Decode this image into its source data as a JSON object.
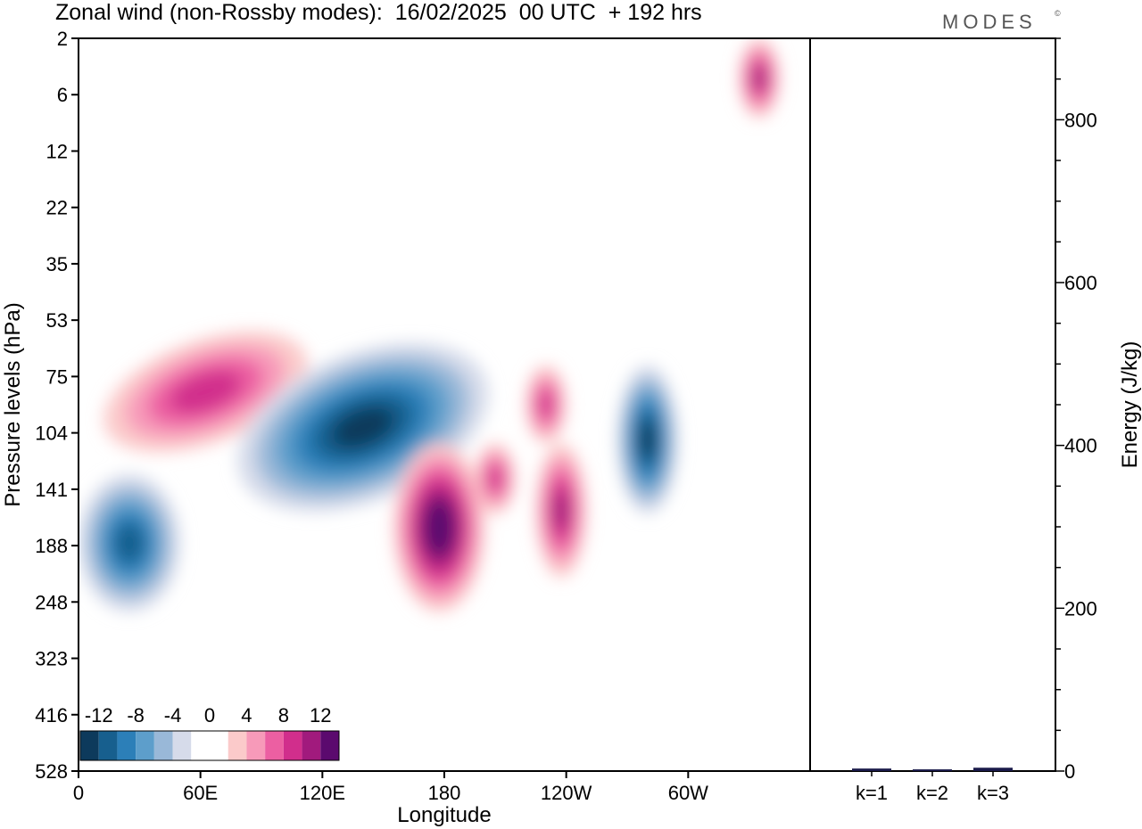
{
  "header": {
    "title": "Zonal wind (non-Rossby modes):  16/02/2025  00 UTC  + 192 hrs",
    "logo": "MODES",
    "logo_mark": "©"
  },
  "chart_data": [
    {
      "type": "heatmap",
      "title": "Zonal wind (non-Rossby modes):  16/02/2025  00 UTC  + 192 hrs",
      "xlabel": "Longitude",
      "ylabel": "Pressure levels (hPa)",
      "x_ticks": [
        "0",
        "60E",
        "120E",
        "180",
        "120W",
        "60W"
      ],
      "x_tick_values": [
        0,
        60,
        120,
        180,
        240,
        300
      ],
      "xlim": [
        0,
        360
      ],
      "y_ticks": [
        "2",
        "6",
        "12",
        "22",
        "35",
        "53",
        "75",
        "104",
        "141",
        "188",
        "248",
        "323",
        "416",
        "528"
      ],
      "y_scale": "categorical levels, top to bottom",
      "colorbar": {
        "labels": [
          "-12",
          "-8",
          "-4",
          "0",
          "4",
          "8",
          "12"
        ],
        "bounds": [
          -14,
          -12,
          -10,
          -8,
          -6,
          -4,
          -2,
          0,
          2,
          4,
          6,
          8,
          10,
          12,
          14
        ],
        "colors": [
          "#0d3a5c",
          "#175f8e",
          "#2c7fb8",
          "#5d9ecb",
          "#99b8d8",
          "#d6dbea",
          "#ffffff",
          "#ffffff",
          "#fbcaca",
          "#f79ab9",
          "#ec5fa2",
          "#d12e8c",
          "#a11a7d",
          "#5b0a6e"
        ],
        "placement": "bottom-left inside plot"
      },
      "features": [
        {
          "kind": "positive band",
          "lon": [
            10,
            115
          ],
          "level": [
            60,
            110
          ],
          "peak": 8
        },
        {
          "kind": "negative band",
          "lon": [
            75,
            205
          ],
          "level": [
            65,
            150
          ],
          "peak": -12
        },
        {
          "kind": "negative cell",
          "lon": [
            0,
            50
          ],
          "level": [
            130,
            260
          ],
          "peak": -10
        },
        {
          "kind": "positive cell",
          "lon": [
            155,
            200
          ],
          "level": [
            110,
            260
          ],
          "peak": 14
        },
        {
          "kind": "positive cell",
          "lon": [
            195,
            215
          ],
          "level": [
            110,
            160
          ],
          "peak": 8
        },
        {
          "kind": "positive cell",
          "lon": [
            225,
            250
          ],
          "level": [
            110,
            220
          ],
          "peak": 10
        },
        {
          "kind": "positive cell",
          "lon": [
            220,
            240
          ],
          "level": [
            70,
            110
          ],
          "peak": 8
        },
        {
          "kind": "negative cell",
          "lon": [
            265,
            295
          ],
          "level": [
            70,
            160
          ],
          "peak": -12
        },
        {
          "kind": "positive cell",
          "lon": [
            325,
            345
          ],
          "level": [
            2,
            8
          ],
          "peak": 10
        }
      ],
      "grid": false
    },
    {
      "type": "bar",
      "categories": [
        "k=1",
        "k=2",
        "k=3"
      ],
      "values": [
        2,
        1,
        3
      ],
      "ylabel": "Energy (J/kg)",
      "ylim": [
        0,
        900
      ],
      "y_ticks": [
        0,
        200,
        400,
        600,
        800
      ],
      "y_axis_side": "right",
      "bar_color": "#1a1a4a"
    }
  ]
}
